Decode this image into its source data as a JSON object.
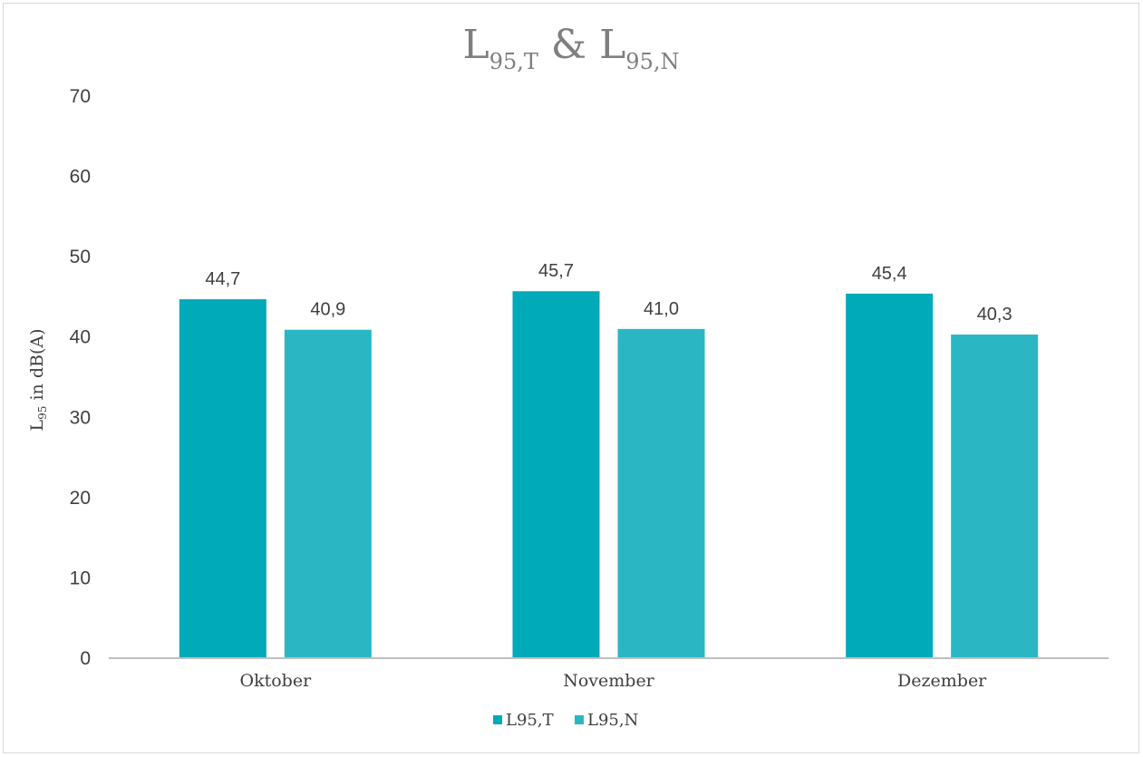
{
  "chart_data": {
    "type": "bar",
    "title": {
      "main_1": "L",
      "sub_1": "95,T",
      "sep": " & ",
      "main_2": "L",
      "sub_2": "95,N"
    },
    "ylabel": {
      "main": "L",
      "sub": "95",
      "rest": " in dB(A)"
    },
    "xlabel": "",
    "categories": [
      "Oktober",
      "November",
      "Dezember"
    ],
    "series": [
      {
        "name": "L95,T",
        "values": [
          44.7,
          45.7,
          45.4
        ],
        "labels": [
          "44,7",
          "45,7",
          "45,4"
        ],
        "color": "#00aab8"
      },
      {
        "name": "L95,N",
        "values": [
          40.9,
          41.0,
          40.3
        ],
        "labels": [
          "40,9",
          "41,0",
          "40,3"
        ],
        "color": "#2ab7c3"
      }
    ],
    "ylim": [
      0,
      70
    ],
    "yticks": [
      0,
      10,
      20,
      30,
      40,
      50,
      60,
      70
    ],
    "grid": false,
    "legend_position": "bottom",
    "axis_color": "#bfbfbf"
  }
}
